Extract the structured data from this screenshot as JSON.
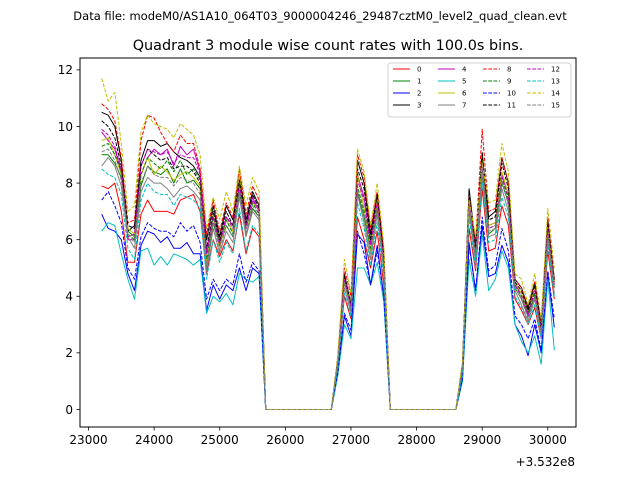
{
  "chart_data": {
    "type": "line",
    "suptitle": "Data file: modeM0/AS1A10_064T03_9000004246_29487cztM0_level2_quad_clean.evt",
    "title": "Quadrant 3 module wise count rates with 100.0s bins.",
    "xlabel": "",
    "ylabel": "",
    "x_offset_label": "+3.532e8",
    "xlim": [
      22870,
      30430
    ],
    "ylim": [
      -0.62,
      12.42
    ],
    "xticks": [
      23000,
      24000,
      25000,
      26000,
      27000,
      28000,
      29000,
      30000
    ],
    "yticks": [
      0,
      2,
      4,
      6,
      8,
      10,
      12
    ],
    "x": [
      23200,
      23300,
      23400,
      23500,
      23600,
      23700,
      23800,
      23900,
      24000,
      24100,
      24200,
      24300,
      24400,
      24500,
      24600,
      24700,
      24800,
      24900,
      25000,
      25100,
      25200,
      25300,
      25400,
      25500,
      25600,
      25700,
      25800,
      25900,
      26000,
      26100,
      26200,
      26300,
      26400,
      26500,
      26600,
      26700,
      26800,
      26900,
      27000,
      27100,
      27200,
      27300,
      27400,
      27500,
      27600,
      27700,
      27800,
      27900,
      28000,
      28100,
      28200,
      28300,
      28400,
      28500,
      28600,
      28700,
      28800,
      28900,
      29000,
      29100,
      29200,
      29300,
      29400,
      29500,
      29600,
      29700,
      29800,
      29900,
      30000,
      30100
    ],
    "legend_ncol": 4,
    "legend_loc": "upper right",
    "series": [
      {
        "name": "0",
        "color": "#ff0000",
        "dash": "solid",
        "values": [
          7.9,
          7.8,
          8.0,
          7.0,
          5.2,
          5.2,
          6.9,
          7.4,
          7.0,
          7.0,
          7.0,
          6.9,
          7.4,
          7.5,
          7.6,
          7.0,
          4.8,
          6.0,
          5.4,
          6.0,
          5.6,
          6.9,
          5.5,
          6.4,
          6.1,
          0,
          0,
          0,
          0,
          0,
          0,
          0,
          0,
          0,
          0,
          0,
          1.5,
          4.0,
          3.2,
          6.8,
          6.0,
          5.0,
          6.3,
          4.4,
          0,
          0,
          0,
          0,
          0,
          0,
          0,
          0,
          0,
          0,
          0,
          1.2,
          6.4,
          4.9,
          7.8,
          5.6,
          5.7,
          7.2,
          6.5,
          3.9,
          3.5,
          3.0,
          3.6,
          2.5,
          5.6,
          3.9
        ]
      },
      {
        "name": "1",
        "color": "#008000",
        "dash": "solid",
        "values": [
          9.0,
          9.0,
          8.7,
          8.2,
          6.3,
          6.1,
          7.9,
          8.6,
          8.4,
          8.3,
          8.5,
          8.0,
          8.5,
          8.0,
          8.1,
          7.8,
          5.0,
          6.6,
          5.8,
          6.5,
          6.1,
          7.7,
          6.2,
          7.1,
          6.8,
          0,
          0,
          0,
          0,
          0,
          0,
          0,
          0,
          0,
          0,
          0,
          1.7,
          4.5,
          3.6,
          7.7,
          6.8,
          5.6,
          7.1,
          5.0,
          0,
          0,
          0,
          0,
          0,
          0,
          0,
          0,
          0,
          0,
          0,
          1.4,
          7.1,
          5.4,
          8.6,
          6.2,
          6.4,
          8.0,
          7.3,
          4.3,
          3.9,
          3.3,
          4.0,
          2.8,
          6.2,
          4.3
        ]
      },
      {
        "name": "2",
        "color": "#0000ff",
        "dash": "solid",
        "values": [
          6.9,
          6.4,
          6.3,
          6.0,
          4.8,
          4.2,
          5.8,
          6.3,
          6.2,
          5.9,
          6.1,
          5.7,
          5.7,
          5.9,
          5.5,
          5.5,
          3.5,
          4.4,
          3.9,
          4.4,
          4.2,
          5.0,
          4.2,
          5.0,
          4.8,
          0,
          0,
          0,
          0,
          0,
          0,
          0,
          0,
          0,
          0,
          0,
          1.3,
          3.3,
          2.6,
          6.2,
          5.9,
          4.4,
          5.8,
          4.0,
          0,
          0,
          0,
          0,
          0,
          0,
          0,
          0,
          0,
          0,
          0,
          1.1,
          5.9,
          4.2,
          6.5,
          4.7,
          4.8,
          5.8,
          5.2,
          3.0,
          2.6,
          1.9,
          3.0,
          2.0,
          4.8,
          2.9
        ]
      },
      {
        "name": "3",
        "color": "#000000",
        "dash": "solid",
        "values": [
          10.5,
          10.4,
          10.0,
          8.8,
          6.3,
          6.5,
          8.8,
          9.5,
          9.5,
          9.3,
          9.4,
          9.1,
          8.9,
          8.8,
          8.6,
          8.2,
          6.0,
          7.2,
          6.1,
          7.2,
          6.7,
          8.3,
          6.7,
          7.7,
          7.2,
          0,
          0,
          0,
          0,
          0,
          0,
          0,
          0,
          0,
          0,
          0,
          1.8,
          4.8,
          3.7,
          8.8,
          8.0,
          6.2,
          7.6,
          5.5,
          0,
          0,
          0,
          0,
          0,
          0,
          0,
          0,
          0,
          0,
          0,
          1.6,
          7.8,
          5.8,
          9.0,
          6.8,
          7.0,
          8.9,
          8.0,
          4.6,
          4.3,
          3.6,
          4.5,
          3.0,
          6.7,
          4.6
        ]
      },
      {
        "name": "4",
        "color": "#bf00bf",
        "dash": "solid",
        "values": [
          9.8,
          9.5,
          9.2,
          8.4,
          6.0,
          6.0,
          8.3,
          8.9,
          9.2,
          9.0,
          9.2,
          8.6,
          9.3,
          9.0,
          9.2,
          8.4,
          5.6,
          6.9,
          5.9,
          6.8,
          6.5,
          8.0,
          6.5,
          7.5,
          7.0,
          0,
          0,
          0,
          0,
          0,
          0,
          0,
          0,
          0,
          0,
          0,
          1.7,
          4.7,
          3.6,
          8.3,
          7.5,
          5.9,
          7.4,
          5.3,
          0,
          0,
          0,
          0,
          0,
          0,
          0,
          0,
          0,
          0,
          0,
          1.5,
          7.5,
          5.6,
          8.5,
          6.5,
          6.6,
          8.3,
          7.6,
          4.4,
          4.1,
          3.4,
          4.3,
          2.9,
          6.5,
          4.5
        ]
      },
      {
        "name": "5",
        "color": "#00bfbf",
        "dash": "solid",
        "values": [
          6.3,
          6.6,
          6.5,
          5.5,
          4.6,
          3.9,
          5.6,
          5.7,
          5.1,
          5.4,
          5.1,
          5.5,
          5.4,
          5.3,
          5.1,
          5.3,
          3.4,
          4.0,
          3.8,
          4.1,
          3.7,
          4.8,
          4.6,
          4.5,
          4.7,
          0,
          0,
          0,
          0,
          0,
          0,
          0,
          0,
          0,
          0,
          0,
          1.2,
          3.0,
          2.5,
          5.0,
          5.0,
          4.4,
          5.2,
          3.8,
          0,
          0,
          0,
          0,
          0,
          0,
          0,
          0,
          0,
          0,
          0,
          1.0,
          5.3,
          4.0,
          6.2,
          4.2,
          4.6,
          5.6,
          5.0,
          3.0,
          2.4,
          2.0,
          2.6,
          1.6,
          4.6,
          2.1
        ]
      },
      {
        "name": "6",
        "color": "#bfbf00",
        "dash": "solid",
        "values": [
          9.5,
          9.6,
          9.0,
          8.3,
          6.4,
          6.2,
          8.3,
          8.9,
          8.3,
          8.6,
          8.4,
          8.1,
          8.3,
          8.4,
          8.2,
          7.9,
          5.2,
          6.9,
          5.7,
          6.7,
          6.3,
          8.3,
          6.1,
          7.3,
          7.1,
          0,
          0,
          0,
          0,
          0,
          0,
          0,
          0,
          0,
          0,
          0,
          1.7,
          4.6,
          3.7,
          8.3,
          7.1,
          5.6,
          7.4,
          5.2,
          0,
          0,
          0,
          0,
          0,
          0,
          0,
          0,
          0,
          0,
          0,
          1.5,
          7.6,
          5.6,
          8.8,
          6.5,
          6.6,
          8.4,
          7.6,
          4.5,
          4.1,
          3.5,
          4.3,
          2.9,
          6.5,
          4.5
        ]
      },
      {
        "name": "7",
        "color": "#808080",
        "dash": "solid",
        "values": [
          8.6,
          8.9,
          8.6,
          7.9,
          6.1,
          5.7,
          7.7,
          8.2,
          8.0,
          8.0,
          7.8,
          7.5,
          7.8,
          7.9,
          7.7,
          7.4,
          4.9,
          6.4,
          5.5,
          6.3,
          5.9,
          7.5,
          6.1,
          7.0,
          6.7,
          0,
          0,
          0,
          0,
          0,
          0,
          0,
          0,
          0,
          0,
          0,
          1.6,
          4.3,
          3.4,
          7.6,
          6.6,
          5.3,
          6.9,
          4.9,
          0,
          0,
          0,
          0,
          0,
          0,
          0,
          0,
          0,
          0,
          0,
          1.4,
          7.0,
          5.2,
          8.2,
          6.1,
          6.2,
          7.8,
          7.0,
          4.2,
          3.7,
          3.1,
          3.9,
          2.6,
          6.0,
          4.1
        ]
      },
      {
        "name": "8",
        "color": "#ff0000",
        "dash": "dashed",
        "values": [
          10.8,
          10.6,
          10.2,
          8.9,
          6.6,
          6.7,
          9.5,
          10.4,
          10.3,
          9.8,
          9.4,
          9.1,
          9.7,
          9.4,
          9.4,
          8.5,
          6.2,
          7.4,
          6.3,
          7.3,
          6.8,
          8.5,
          6.9,
          7.9,
          7.4,
          0,
          0,
          0,
          0,
          0,
          0,
          0,
          0,
          0,
          0,
          0,
          1.8,
          5.0,
          4.0,
          9.0,
          8.2,
          6.4,
          7.7,
          5.6,
          0,
          0,
          0,
          0,
          0,
          0,
          0,
          0,
          0,
          0,
          0,
          1.6,
          7.5,
          5.9,
          9.9,
          7.0,
          7.1,
          8.9,
          8.0,
          4.6,
          4.3,
          3.5,
          4.5,
          3.0,
          6.8,
          4.6
        ]
      },
      {
        "name": "9",
        "color": "#008000",
        "dash": "dashed",
        "values": [
          9.3,
          9.4,
          9.0,
          8.4,
          6.2,
          6.0,
          8.3,
          8.9,
          8.7,
          8.5,
          8.8,
          8.4,
          8.8,
          8.3,
          8.5,
          8.1,
          5.3,
          6.8,
          5.9,
          6.7,
          6.2,
          7.9,
          6.4,
          7.3,
          6.9,
          0,
          0,
          0,
          0,
          0,
          0,
          0,
          0,
          0,
          0,
          0,
          1.7,
          4.6,
          3.6,
          7.9,
          7.0,
          5.7,
          7.2,
          5.1,
          0,
          0,
          0,
          0,
          0,
          0,
          0,
          0,
          0,
          0,
          0,
          1.5,
          7.3,
          5.5,
          8.9,
          6.4,
          6.5,
          8.2,
          7.4,
          4.4,
          4.0,
          3.4,
          4.1,
          2.8,
          6.3,
          4.4
        ]
      },
      {
        "name": "10",
        "color": "#0000ff",
        "dash": "dashed",
        "values": [
          7.4,
          7.7,
          7.2,
          6.6,
          5.0,
          4.6,
          6.1,
          6.6,
          6.4,
          6.3,
          6.3,
          6.1,
          6.6,
          6.3,
          6.5,
          5.9,
          3.9,
          4.6,
          4.2,
          4.6,
          4.4,
          5.5,
          4.5,
          5.2,
          4.9,
          0,
          0,
          0,
          0,
          0,
          0,
          0,
          0,
          0,
          0,
          0,
          1.3,
          3.4,
          2.8,
          6.3,
          5.5,
          4.4,
          5.6,
          4.0,
          0,
          0,
          0,
          0,
          0,
          0,
          0,
          0,
          0,
          0,
          0,
          1.1,
          5.8,
          4.2,
          6.8,
          4.9,
          5.1,
          6.4,
          5.6,
          3.3,
          3.0,
          2.5,
          3.2,
          2.1,
          4.9,
          3.2
        ]
      },
      {
        "name": "11",
        "color": "#000000",
        "dash": "dashed",
        "values": [
          10.2,
          10.0,
          9.6,
          8.6,
          6.5,
          6.4,
          8.6,
          9.2,
          9.0,
          8.8,
          8.9,
          8.5,
          8.6,
          8.6,
          8.4,
          8.0,
          5.7,
          7.0,
          6.0,
          7.0,
          6.5,
          8.1,
          6.6,
          7.6,
          7.1,
          0,
          0,
          0,
          0,
          0,
          0,
          0,
          0,
          0,
          0,
          0,
          1.8,
          4.7,
          3.7,
          8.5,
          7.8,
          6.0,
          7.6,
          5.4,
          0,
          0,
          0,
          0,
          0,
          0,
          0,
          0,
          0,
          0,
          0,
          1.5,
          7.7,
          5.7,
          9.1,
          6.7,
          6.8,
          8.7,
          7.8,
          4.5,
          4.2,
          3.5,
          4.4,
          2.9,
          6.6,
          4.5
        ]
      },
      {
        "name": "12",
        "color": "#bf00bf",
        "dash": "dashed",
        "values": [
          9.9,
          9.7,
          9.3,
          8.5,
          6.1,
          6.2,
          8.6,
          9.2,
          9.1,
          9.0,
          9.1,
          8.7,
          9.0,
          8.9,
          8.9,
          8.3,
          5.5,
          6.8,
          5.8,
          6.8,
          6.4,
          7.9,
          6.4,
          7.4,
          7.0,
          0,
          0,
          0,
          0,
          0,
          0,
          0,
          0,
          0,
          0,
          0,
          1.7,
          4.6,
          3.6,
          8.1,
          7.4,
          5.8,
          7.3,
          5.2,
          0,
          0,
          0,
          0,
          0,
          0,
          0,
          0,
          0,
          0,
          0,
          1.5,
          7.4,
          5.5,
          8.6,
          6.4,
          6.5,
          8.2,
          7.5,
          4.4,
          4.0,
          3.3,
          4.2,
          2.8,
          6.4,
          4.4
        ]
      },
      {
        "name": "13",
        "color": "#00bfbf",
        "dash": "dashed",
        "values": [
          8.5,
          8.3,
          8.2,
          7.6,
          5.7,
          5.3,
          7.4,
          8.0,
          7.7,
          7.6,
          7.6,
          7.2,
          7.6,
          7.5,
          7.4,
          7.1,
          4.6,
          6.0,
          5.2,
          5.9,
          5.5,
          7.1,
          5.6,
          6.5,
          6.2,
          0,
          0,
          0,
          0,
          0,
          0,
          0,
          0,
          0,
          0,
          0,
          1.5,
          4.1,
          3.3,
          7.3,
          6.4,
          5.1,
          6.6,
          4.7,
          0,
          0,
          0,
          0,
          0,
          0,
          0,
          0,
          0,
          0,
          0,
          1.3,
          6.8,
          5.0,
          8.0,
          5.9,
          6.0,
          7.5,
          6.8,
          4.0,
          3.6,
          3.0,
          3.7,
          2.5,
          5.8,
          4.0
        ]
      },
      {
        "name": "14",
        "color": "#bfbf00",
        "dash": "dashed",
        "values": [
          11.7,
          10.9,
          11.2,
          9.4,
          7.0,
          7.2,
          9.8,
          10.4,
          10.1,
          10.0,
          9.9,
          9.6,
          10.1,
          9.9,
          9.7,
          9.0,
          6.4,
          7.5,
          6.7,
          7.7,
          7.0,
          8.6,
          7.2,
          8.2,
          7.7,
          0,
          0,
          0,
          0,
          0,
          0,
          0,
          0,
          0,
          0,
          0,
          1.9,
          5.3,
          4.1,
          9.2,
          8.4,
          6.5,
          8.0,
          5.8,
          0,
          0,
          0,
          0,
          0,
          0,
          0,
          0,
          0,
          0,
          0,
          1.7,
          7.4,
          6.1,
          8.7,
          7.3,
          7.4,
          9.4,
          8.4,
          4.8,
          4.6,
          3.7,
          4.8,
          3.2,
          7.1,
          5.0
        ]
      },
      {
        "name": "15",
        "color": "#808080",
        "dash": "dashed",
        "values": [
          9.1,
          9.2,
          8.8,
          8.1,
          6.2,
          5.9,
          8.0,
          8.6,
          8.3,
          8.2,
          8.2,
          7.9,
          8.2,
          8.1,
          8.0,
          7.6,
          5.1,
          6.6,
          5.6,
          6.5,
          6.1,
          7.7,
          6.2,
          7.2,
          6.8,
          0,
          0,
          0,
          0,
          0,
          0,
          0,
          0,
          0,
          0,
          0,
          1.7,
          4.5,
          3.5,
          7.8,
          6.9,
          5.5,
          7.1,
          5.0,
          0,
          0,
          0,
          0,
          0,
          0,
          0,
          0,
          0,
          0,
          0,
          1.4,
          7.2,
          5.4,
          8.5,
          6.3,
          6.4,
          8.1,
          7.2,
          4.3,
          3.9,
          3.2,
          4.0,
          2.7,
          6.2,
          4.3
        ]
      }
    ]
  }
}
